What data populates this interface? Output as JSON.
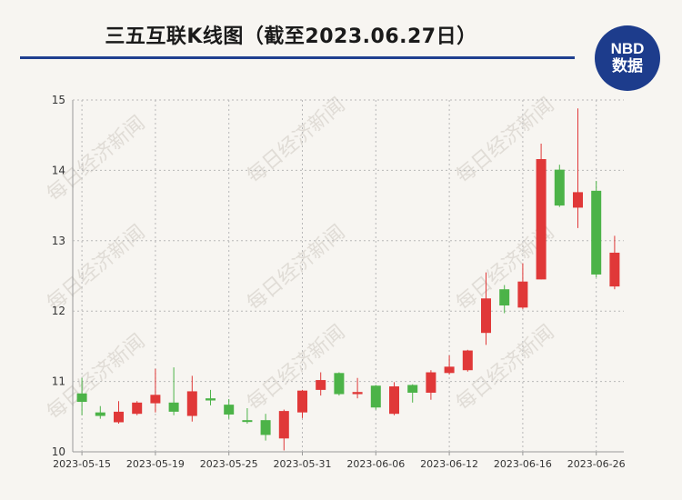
{
  "header": {
    "title": "三五互联K线图（截至2023.06.27日）",
    "logo": {
      "brand": "NBD",
      "sub": "数据"
    }
  },
  "watermark": "每日经济新闻",
  "colors": {
    "up": "#e03838",
    "down": "#4cb348",
    "title_bar": "#1f3f8f",
    "logo_bg": "#1d3c8c"
  },
  "chart_data": {
    "type": "candlestick",
    "title": "三五互联K线图（截至2023.06.27日）",
    "ylim": [
      10,
      15
    ],
    "yticks": [
      10,
      11,
      12,
      13,
      14,
      15
    ],
    "xtick_labels": [
      "2023-05-15",
      "2023-05-19",
      "2023-05-25",
      "2023-05-31",
      "2023-06-06",
      "2023-06-12",
      "2023-06-16",
      "2023-06-26"
    ],
    "grid": true,
    "candles": [
      {
        "date": "2023-05-15",
        "open": 10.83,
        "close": 10.71,
        "high": 11.05,
        "low": 10.52
      },
      {
        "date": "2023-05-16",
        "open": 10.56,
        "close": 10.51,
        "high": 10.65,
        "low": 10.47
      },
      {
        "date": "2023-05-17",
        "open": 10.42,
        "close": 10.57,
        "high": 10.72,
        "low": 10.4
      },
      {
        "date": "2023-05-18",
        "open": 10.54,
        "close": 10.7,
        "high": 10.72,
        "low": 10.52
      },
      {
        "date": "2023-05-19",
        "open": 10.69,
        "close": 10.81,
        "high": 11.18,
        "low": 10.56
      },
      {
        "date": "2023-05-22",
        "open": 10.7,
        "close": 10.57,
        "high": 11.2,
        "low": 10.52
      },
      {
        "date": "2023-05-23",
        "open": 10.51,
        "close": 10.86,
        "high": 11.08,
        "low": 10.43
      },
      {
        "date": "2023-05-24",
        "open": 10.76,
        "close": 10.73,
        "high": 10.88,
        "low": 10.66
      },
      {
        "date": "2023-05-25",
        "open": 10.67,
        "close": 10.53,
        "high": 10.75,
        "low": 10.47
      },
      {
        "date": "2023-05-26",
        "open": 10.45,
        "close": 10.44,
        "high": 10.62,
        "low": 10.4
      },
      {
        "date": "2023-05-29",
        "open": 10.45,
        "close": 10.24,
        "high": 10.54,
        "low": 10.16
      },
      {
        "date": "2023-05-30",
        "open": 10.19,
        "close": 10.58,
        "high": 10.6,
        "low": 10.02
      },
      {
        "date": "2023-05-31",
        "open": 10.56,
        "close": 10.87,
        "high": 10.88,
        "low": 10.48
      },
      {
        "date": "2023-06-01",
        "open": 10.88,
        "close": 11.02,
        "high": 11.13,
        "low": 10.8
      },
      {
        "date": "2023-06-02",
        "open": 11.12,
        "close": 10.82,
        "high": 11.13,
        "low": 10.8
      },
      {
        "date": "2023-06-05",
        "open": 10.82,
        "close": 10.85,
        "high": 11.05,
        "low": 10.76
      },
      {
        "date": "2023-06-06",
        "open": 10.94,
        "close": 10.63,
        "high": 10.95,
        "low": 10.6
      },
      {
        "date": "2023-06-07",
        "open": 10.54,
        "close": 10.93,
        "high": 10.99,
        "low": 10.52
      },
      {
        "date": "2023-06-08",
        "open": 10.95,
        "close": 10.84,
        "high": 10.96,
        "low": 10.7
      },
      {
        "date": "2023-06-09",
        "open": 10.84,
        "close": 11.13,
        "high": 11.16,
        "low": 10.74
      },
      {
        "date": "2023-06-12",
        "open": 11.12,
        "close": 11.21,
        "high": 11.37,
        "low": 11.1
      },
      {
        "date": "2023-06-13",
        "open": 11.16,
        "close": 11.44,
        "high": 11.45,
        "low": 11.14
      },
      {
        "date": "2023-06-14",
        "open": 11.69,
        "close": 12.18,
        "high": 12.55,
        "low": 11.52
      },
      {
        "date": "2023-06-15",
        "open": 12.31,
        "close": 12.08,
        "high": 12.37,
        "low": 11.97
      },
      {
        "date": "2023-06-16",
        "open": 12.05,
        "close": 12.42,
        "high": 12.68,
        "low": 12.03
      },
      {
        "date": "2023-06-19",
        "open": 12.45,
        "close": 14.16,
        "high": 14.38,
        "low": 12.45
      },
      {
        "date": "2023-06-20",
        "open": 14.01,
        "close": 13.5,
        "high": 14.08,
        "low": 13.48
      },
      {
        "date": "2023-06-21",
        "open": 13.47,
        "close": 13.69,
        "high": 14.88,
        "low": 13.18
      },
      {
        "date": "2023-06-26",
        "open": 13.71,
        "close": 12.52,
        "high": 13.85,
        "low": 12.48
      },
      {
        "date": "2023-06-27",
        "open": 12.35,
        "close": 12.83,
        "high": 13.07,
        "low": 12.31
      }
    ]
  }
}
